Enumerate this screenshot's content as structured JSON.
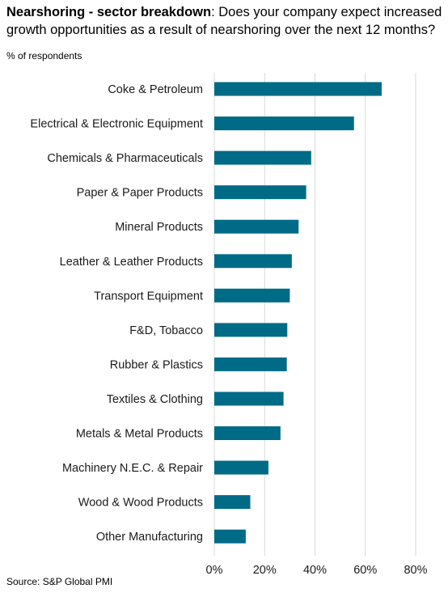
{
  "header": {
    "title_bold": "Nearshoring - sector breakdown",
    "title_rest": ": Does your company expect increased growth opportunities as a result of nearshoring over the next 12 months?"
  },
  "subtitle": "% of respondents",
  "source": "Source: S&P Global PMI",
  "colors": {
    "bar": "#006B86",
    "grid": "#D9D9D9"
  },
  "chart_data": {
    "type": "bar",
    "orientation": "horizontal",
    "categories": [
      "Coke & Petroleum",
      "Electrical & Electronic Equipment",
      "Chemicals & Pharmaceuticals",
      "Paper & Paper Products",
      "Mineral Products",
      "Leather & Leather Products",
      "Transport Equipment",
      "F&D, Tobacco",
      "Rubber & Plastics",
      "Textiles & Clothing",
      "Metals & Metal Products",
      "Machinery N.E.C. & Repair",
      "Wood & Wood Products",
      "Other Manufacturing"
    ],
    "values": [
      66.5,
      55.5,
      38.5,
      36.5,
      33.5,
      30.8,
      30.0,
      29.0,
      28.8,
      27.5,
      26.3,
      21.5,
      14.3,
      12.5
    ],
    "xlim": [
      0,
      80
    ],
    "ticks": [
      0,
      20,
      40,
      60,
      80
    ],
    "tick_labels": [
      "0%",
      "20%",
      "40%",
      "60%",
      "80%"
    ],
    "grid": true
  }
}
